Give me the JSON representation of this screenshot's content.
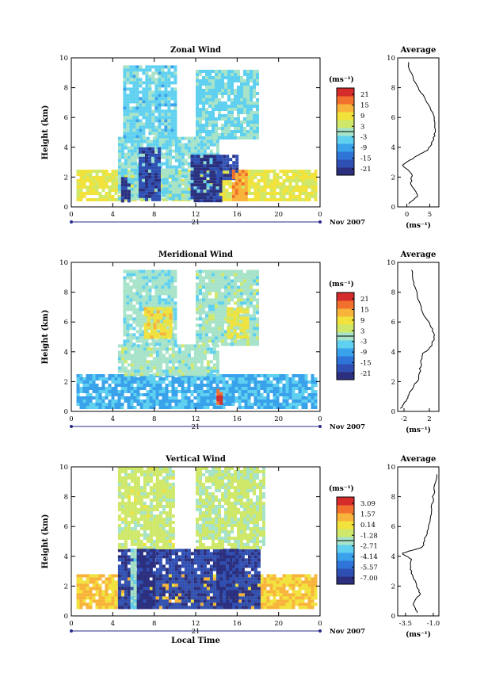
{
  "figure": {
    "ylabel": "Height (km)",
    "xlabel": "Local Time",
    "date_label": "Nov 2007",
    "day_label": "21",
    "unit": "(ms⁻¹)",
    "avg_title": "Average"
  },
  "colormap": [
    "#2b2f7e",
    "#2f4fb3",
    "#2f74d8",
    "#3aa2ea",
    "#5fd0f0",
    "#a6e3c8",
    "#cfe86a",
    "#f2e23c",
    "#f8b43a",
    "#f2702e",
    "#d52b2b"
  ],
  "chart_data": [
    {
      "type": "heatmap",
      "title": "Zonal Wind",
      "x_ticks": [
        "0",
        "4",
        "8",
        "12",
        "16",
        "20",
        "0"
      ],
      "xlim": [
        0,
        24
      ],
      "y_ticks": [
        "0",
        "2",
        "4",
        "6",
        "8",
        "10"
      ],
      "ylim": [
        0,
        10
      ],
      "colorbar_ticks": [
        "21",
        "15",
        "9",
        "3",
        "-3",
        "-9",
        "-15",
        "-21"
      ],
      "clim": [
        -24,
        24
      ],
      "regions": [
        {
          "x": [
            0.5,
            23.5
          ],
          "y": [
            0.5,
            2.5
          ],
          "v": 7
        },
        {
          "x": [
            4.5,
            14
          ],
          "y": [
            0.5,
            4.7
          ],
          "v": -2
        },
        {
          "x": [
            5,
            10
          ],
          "y": [
            4.7,
            9.5
          ],
          "v": -4
        },
        {
          "x": [
            12,
            18
          ],
          "y": [
            4.7,
            9.2
          ],
          "v": -3
        },
        {
          "x": [
            4.8,
            5.5
          ],
          "y": [
            0.5,
            2
          ],
          "v": -21
        },
        {
          "x": [
            6.5,
            8.5
          ],
          "y": [
            0.5,
            4
          ],
          "v": -18
        },
        {
          "x": [
            11.5,
            14.5
          ],
          "y": [
            0.5,
            3.5
          ],
          "v": -21
        },
        {
          "x": [
            14,
            16
          ],
          "y": [
            2,
            3.5
          ],
          "v": -18
        },
        {
          "x": [
            15.5,
            17
          ],
          "y": [
            0.5,
            2.5
          ],
          "v": 14
        }
      ],
      "average": {
        "x_ticks": [
          "0",
          "5"
        ],
        "xlim": [
          -2,
          7
        ],
        "heights": [
          0.2,
          0.8,
          1.5,
          2.2,
          2.8,
          3.3,
          3.8,
          4.3,
          5,
          6,
          7,
          8,
          9,
          9.7
        ],
        "values": [
          0.5,
          2.5,
          0.8,
          1.2,
          -1.0,
          1.5,
          4.5,
          5.5,
          6.2,
          6.0,
          4.5,
          2.5,
          0.8,
          0.3
        ]
      }
    },
    {
      "type": "heatmap",
      "title": "Meridional Wind",
      "x_ticks": [
        "0",
        "4",
        "8",
        "12",
        "16",
        "20",
        "0"
      ],
      "xlim": [
        0,
        24
      ],
      "y_ticks": [
        "0",
        "2",
        "4",
        "6",
        "8",
        "10"
      ],
      "ylim": [
        0,
        10
      ],
      "colorbar_ticks": [
        "21",
        "15",
        "9",
        "3",
        "-3",
        "-9",
        "-15",
        "-21"
      ],
      "clim": [
        -24,
        24
      ],
      "regions": [
        {
          "x": [
            0.5,
            23.5
          ],
          "y": [
            0.3,
            2.5
          ],
          "v": -7
        },
        {
          "x": [
            4.5,
            14
          ],
          "y": [
            2.5,
            4.5
          ],
          "v": 0
        },
        {
          "x": [
            5,
            10
          ],
          "y": [
            4.5,
            9.5
          ],
          "v": -1
        },
        {
          "x": [
            12,
            18
          ],
          "y": [
            4.5,
            9.5
          ],
          "v": 0
        },
        {
          "x": [
            7,
            9.5
          ],
          "y": [
            5,
            7
          ],
          "v": 9
        },
        {
          "x": [
            15,
            17
          ],
          "y": [
            5,
            7
          ],
          "v": 8
        },
        {
          "x": [
            14,
            14.5
          ],
          "y": [
            0.3,
            1.5
          ],
          "v": 21
        }
      ],
      "average": {
        "x_ticks": [
          "-2",
          "2"
        ],
        "xlim": [
          -3,
          3.5
        ],
        "heights": [
          0.2,
          0.8,
          1.5,
          2.2,
          3,
          3.8,
          4.3,
          5,
          5.8,
          6.5,
          7.5,
          8.5,
          9.5
        ],
        "values": [
          -2.5,
          -1.5,
          -0.8,
          0.3,
          0.6,
          0.8,
          2.2,
          2.8,
          2.2,
          1.0,
          0.3,
          -0.4,
          -0.8
        ]
      }
    },
    {
      "type": "heatmap",
      "title": "Vertical Wind",
      "x_ticks": [
        "0",
        "4",
        "8",
        "12",
        "16",
        "20",
        "0"
      ],
      "xlim": [
        0,
        24
      ],
      "y_ticks": [
        "0",
        "2",
        "4",
        "6",
        "8",
        "10"
      ],
      "ylim": [
        0,
        10
      ],
      "colorbar_ticks": [
        "3.09",
        "1.57",
        "0.14",
        "-1.28",
        "-2.71",
        "-4.14",
        "-5.57",
        "-7.00"
      ],
      "clim": [
        -7.7,
        3.8
      ],
      "regions": [
        {
          "x": [
            0.5,
            23.5
          ],
          "y": [
            0.5,
            2.8
          ],
          "v": 0.8
        },
        {
          "x": [
            4.5,
            18
          ],
          "y": [
            0.5,
            4.5
          ],
          "v": -6.4
        },
        {
          "x": [
            4.5,
            10
          ],
          "y": [
            4.5,
            10
          ],
          "v": -1.0
        },
        {
          "x": [
            12,
            18.5
          ],
          "y": [
            4.5,
            10
          ],
          "v": -1.2
        },
        {
          "x": [
            6,
            8
          ],
          "y": [
            0.5,
            4.5
          ],
          "v": -7.0
        },
        {
          "x": [
            14,
            16
          ],
          "y": [
            0.5,
            4.5
          ],
          "v": -6.8
        },
        {
          "x": [
            5.7,
            6.1
          ],
          "y": [
            0.5,
            4.5
          ],
          "v": -2.3
        }
      ],
      "average": {
        "x_ticks": [
          "-3.5",
          "-1.0"
        ],
        "xlim": [
          -4.2,
          -0.5
        ],
        "heights": [
          0.2,
          0.8,
          1.5,
          2.2,
          3,
          3.8,
          4.2,
          4.6,
          5.5,
          6.5,
          7.5,
          8.5,
          9.5
        ],
        "values": [
          -2.4,
          -2.8,
          -2.2,
          -2.6,
          -3.0,
          -3.0,
          -3.8,
          -2.0,
          -1.6,
          -1.3,
          -1.1,
          -0.9,
          -0.7
        ]
      }
    }
  ]
}
